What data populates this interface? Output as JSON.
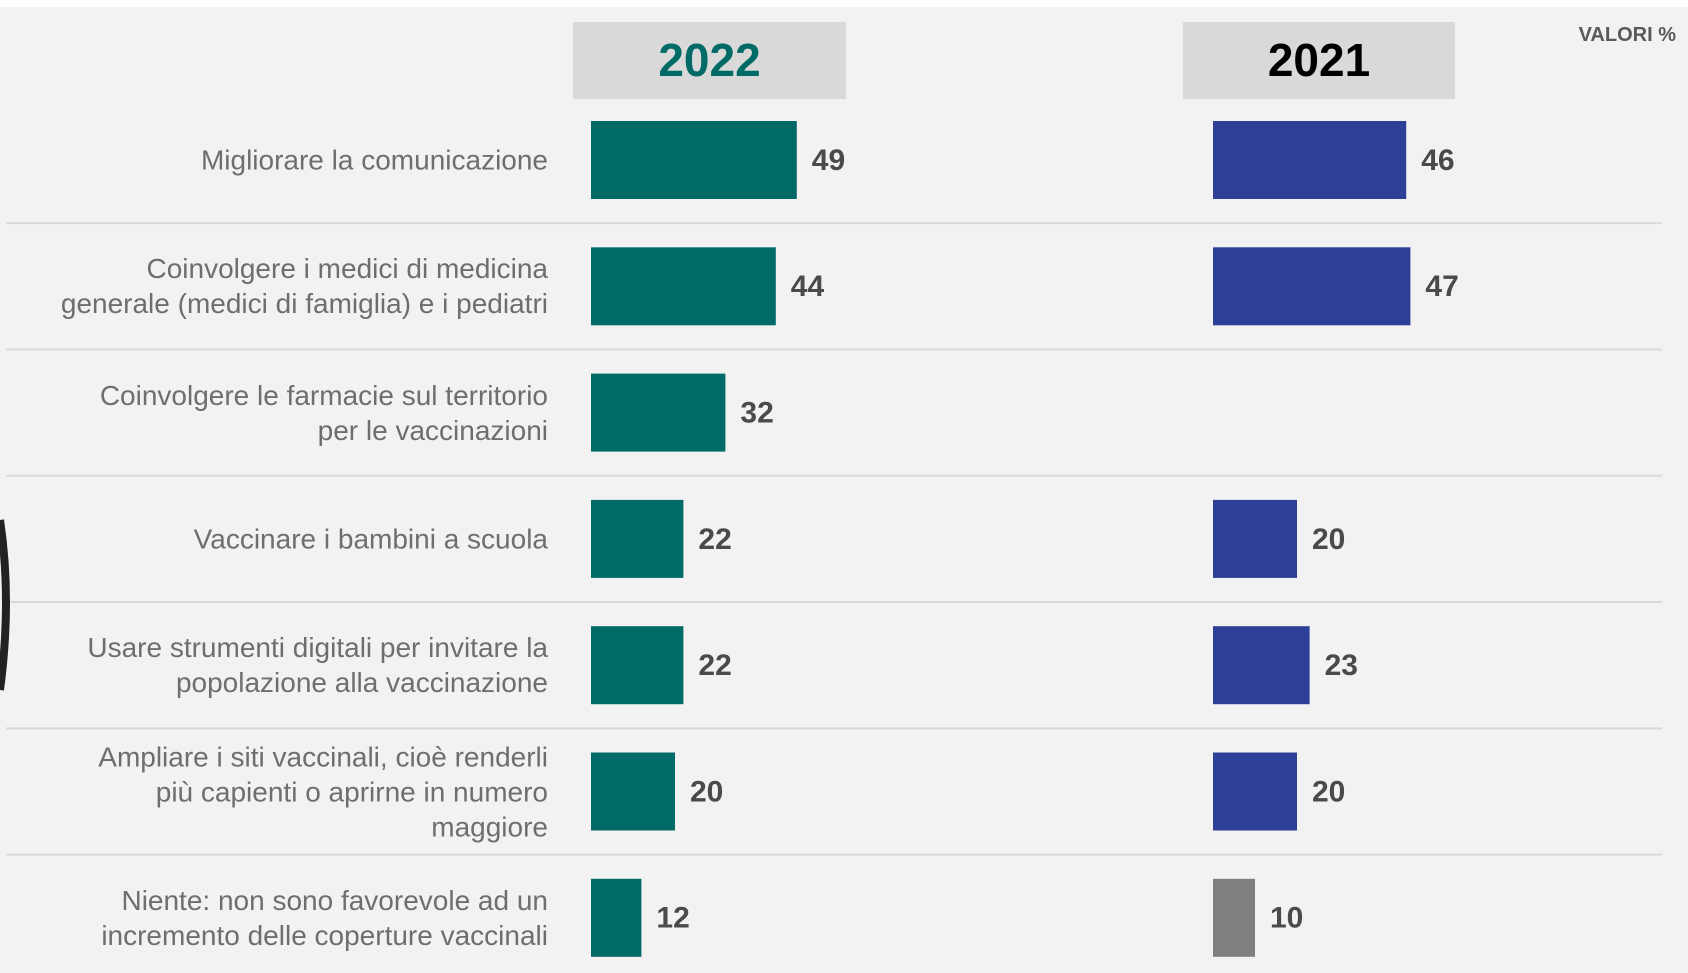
{
  "chart_data": {
    "type": "bar",
    "orientation": "horizontal",
    "note": "VALORI %",
    "categories": [
      "Migliorare la comunicazione",
      "Coinvolgere i medici di medicina\ngenerale (medici di famiglia) e i pediatri",
      "Coinvolgere le farmacie sul territorio\nper le vaccinazioni",
      "Vaccinare i bambini a scuola",
      "Usare strumenti digitali per invitare la\npopolazione alla vaccinazione",
      "Ampliare i siti vaccinali, cioè renderli\npiù capienti o aprirne in numero\nmaggiore",
      "Niente: non sono favorevole ad un\nincremento delle coperture vaccinali"
    ],
    "series": [
      {
        "name": "2022",
        "color": "#006b66",
        "values": [
          49,
          44,
          32,
          22,
          22,
          20,
          12
        ]
      },
      {
        "name": "2021",
        "color": "#2e3f97",
        "colors": [
          "#2e3f97",
          "#2e3f97",
          "#2e3f97",
          "#2e3f97",
          "#2e3f97",
          "#2e3f97",
          "#7f7f7f"
        ],
        "values": [
          46,
          47,
          null,
          20,
          23,
          20,
          10
        ]
      }
    ]
  }
}
